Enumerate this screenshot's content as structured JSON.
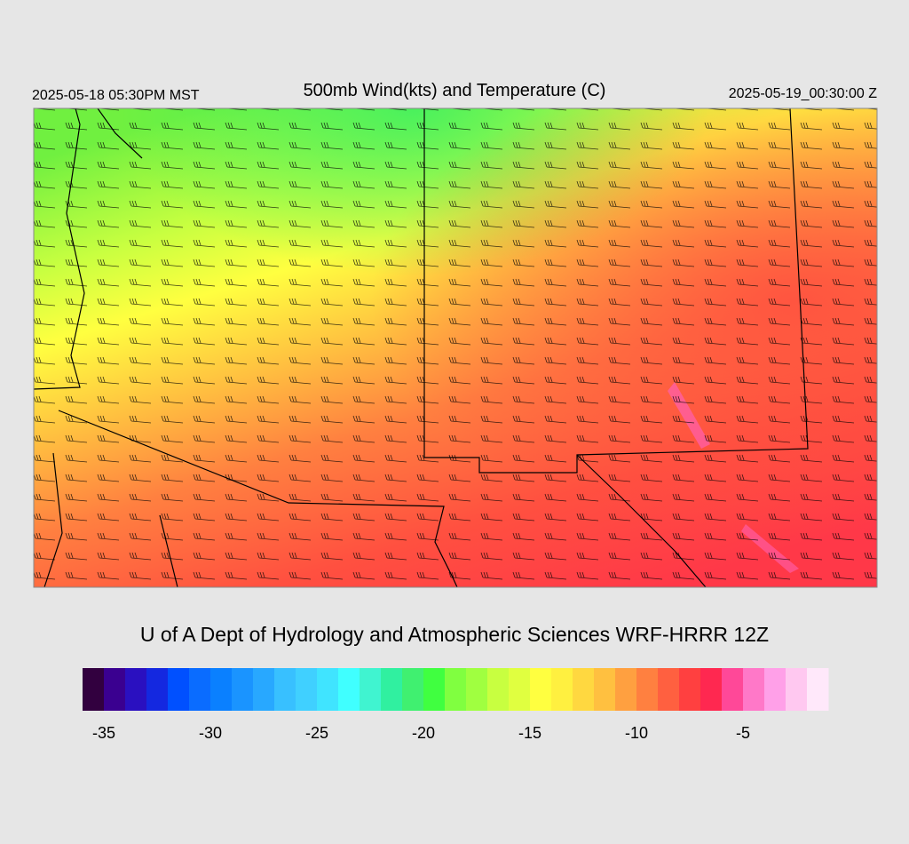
{
  "header": {
    "local_time": "2025-05-18 05:30PM MST",
    "title": "500mb Wind(kts) and Temperature (C)",
    "valid_time": "2025-05-19_00:30:00 Z"
  },
  "credit": "U of A Dept of Hydrology and Atmospheric Sciences WRF-HRRR 12Z",
  "colorbar": {
    "range": [
      -36,
      -1
    ],
    "ticks": [
      -35,
      -30,
      -25,
      -20,
      -15,
      -10,
      -5
    ],
    "colors": [
      "#32003f",
      "#3a0090",
      "#2a10c0",
      "#1428e0",
      "#0050ff",
      "#0a6cff",
      "#0a80ff",
      "#1a94ff",
      "#28a8ff",
      "#38c0ff",
      "#40d0ff",
      "#40e4ff",
      "#40ffff",
      "#40f4d0",
      "#30f0a0",
      "#40f070",
      "#40ff40",
      "#80ff40",
      "#a0ff40",
      "#c8ff40",
      "#e0ff40",
      "#ffff40",
      "#fff040",
      "#ffd840",
      "#ffc040",
      "#ffa040",
      "#ff8040",
      "#ff6040",
      "#ff4040",
      "#ff2850",
      "#ff4898",
      "#ff78c8",
      "#ffa0e8",
      "#ffc8f0",
      "#ffe8fa"
    ]
  }
}
